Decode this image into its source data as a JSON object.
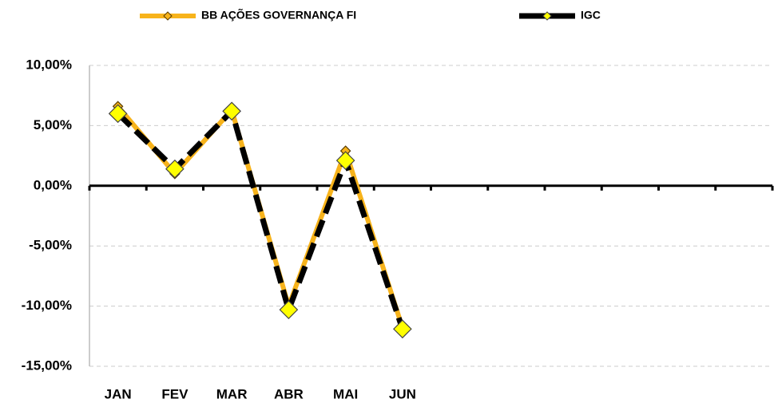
{
  "chart_data": {
    "type": "line",
    "categories": [
      "JAN",
      "FEV",
      "MAR",
      "ABR",
      "MAI",
      "JUN",
      null,
      null,
      null,
      null,
      null,
      null
    ],
    "series": [
      {
        "name": "BB AÇÕES GOVERNANÇA FI",
        "color": "#f7b31b",
        "values": [
          6.6,
          1.0,
          6.3,
          -10.0,
          2.9,
          -11.8,
          null,
          null,
          null,
          null,
          null,
          null
        ]
      },
      {
        "name": "IGC",
        "color": "#000000",
        "values": [
          6.0,
          1.4,
          6.2,
          -10.3,
          2.1,
          -11.9,
          null,
          null,
          null,
          null,
          null,
          null
        ]
      }
    ],
    "ylim": [
      -15,
      10
    ],
    "yticks": [
      {
        "value": -15,
        "label": "-15,00%"
      },
      {
        "value": -10,
        "label": "-10,00%"
      },
      {
        "value": -5,
        "label": "-5,00%"
      },
      {
        "value": 0,
        "label": "0,00%"
      },
      {
        "value": 5,
        "label": "5,00%"
      },
      {
        "value": 10,
        "label": "10,00%"
      }
    ],
    "grid": true,
    "legend": "top"
  }
}
